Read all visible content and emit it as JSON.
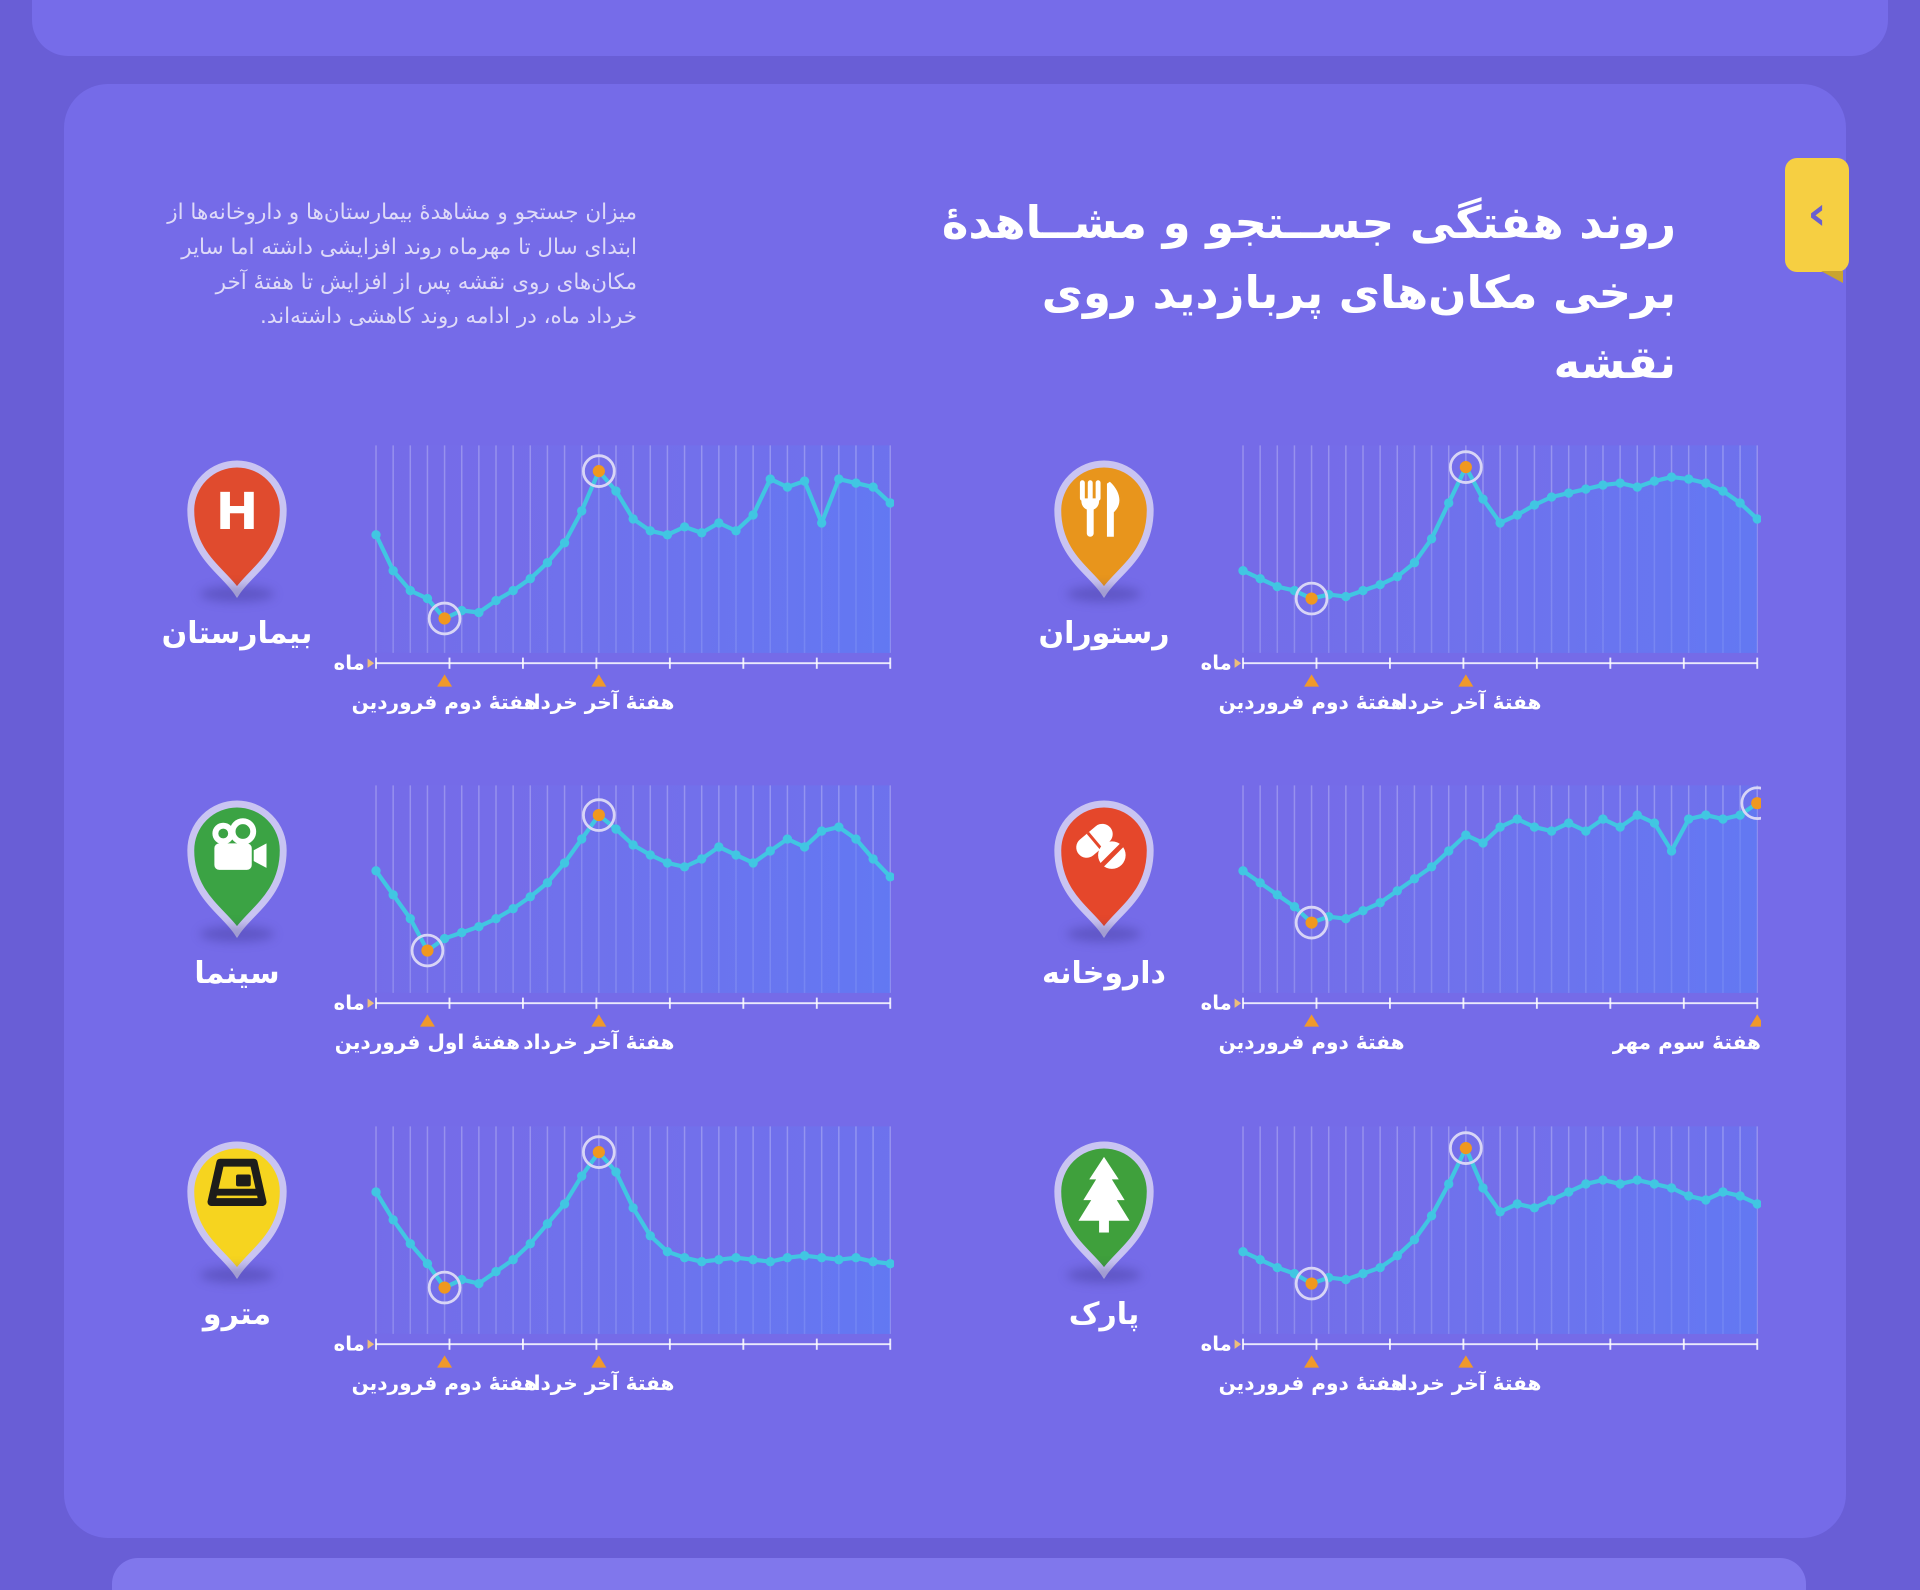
{
  "page": {
    "colors": {
      "background": "#695ED6",
      "card": "#756BE8",
      "line": "#41C6E2",
      "point": "#41C6E2",
      "highlight_dot": "#F0981F",
      "highlight_ring": "#D8D5F6",
      "grid": "rgba(255,255,255,0.25)",
      "axis": "rgba(255,255,255,0.85)",
      "annotation_triangle": "#F0992B",
      "month_arrow": "#EDBE7A",
      "bookmark": "#F6CF42",
      "pin_ring": "#C9C4F2"
    }
  },
  "header": {
    "title_line1": "روند هفتگی جســتجو و مشــاهدهٔ",
    "title_line2": "برخی مکان‌های پربازدید روی نقشه",
    "bookmark_chevron": "‹"
  },
  "intro": {
    "text": "میزان جستجو و مشاهدهٔ بیمارستان‌ها و داروخانه‌ها از ابتدای سال تا مهرماه روند افزایشی داشته اما سایر مکان‌های روی نقشه پس از افزایش تا هفتهٔ آخر خرداد ماه، در ادامه روند کاهشی داشته‌اند."
  },
  "axis": {
    "month_label": "ماه",
    "tick_count": 8
  },
  "chart_data": [
    {
      "type": "area",
      "name": "hospital",
      "label": "بیمارستان",
      "pin_color": "#E04B2E",
      "icon": "hospital-pin-icon",
      "icon_letter": "H",
      "ylim": [
        0,
        100
      ],
      "values": [
        56,
        38,
        28,
        24,
        14,
        18,
        17,
        23,
        28,
        34,
        42,
        52,
        68,
        88,
        78,
        64,
        58,
        56,
        60,
        57,
        62,
        58,
        66,
        84,
        80,
        83,
        62,
        84,
        82,
        80,
        72
      ],
      "highlights": [
        4,
        13
      ],
      "annotations": [
        {
          "index": 4,
          "label": "هفتهٔ دوم فروردین"
        },
        {
          "index": 13,
          "label": "هفتهٔ آخر خرداد"
        }
      ]
    },
    {
      "type": "area",
      "name": "restaurant",
      "label": "رستوران",
      "pin_color": "#E8951C",
      "icon": "restaurant-pin-icon",
      "ylim": [
        0,
        100
      ],
      "values": [
        38,
        34,
        30,
        28,
        24,
        26,
        25,
        28,
        31,
        35,
        42,
        54,
        72,
        90,
        74,
        62,
        66,
        71,
        75,
        77,
        79,
        81,
        82,
        80,
        83,
        85,
        84,
        82,
        78,
        72,
        64
      ],
      "highlights": [
        4,
        13
      ],
      "annotations": [
        {
          "index": 4,
          "label": "هفتهٔ دوم فروردین"
        },
        {
          "index": 13,
          "label": "هفتهٔ آخر خرداد"
        }
      ]
    },
    {
      "type": "area",
      "name": "cinema",
      "label": "سینما",
      "pin_color": "#3BA344",
      "icon": "cinema-pin-icon",
      "ylim": [
        0,
        100
      ],
      "values": [
        58,
        46,
        34,
        18,
        24,
        27,
        30,
        34,
        39,
        45,
        52,
        62,
        74,
        86,
        79,
        71,
        66,
        62,
        60,
        64,
        70,
        66,
        62,
        68,
        74,
        70,
        78,
        80,
        74,
        64,
        55
      ],
      "highlights": [
        3,
        13
      ],
      "annotations": [
        {
          "index": 3,
          "label": "هفتهٔ اول فروردین"
        },
        {
          "index": 13,
          "label": "هفتهٔ آخر خرداد"
        }
      ]
    },
    {
      "type": "area",
      "name": "pharmacy",
      "label": "داروخانه",
      "pin_color": "#E5472B",
      "icon": "pharmacy-pin-icon",
      "ylim": [
        0,
        100
      ],
      "values": [
        58,
        52,
        46,
        40,
        32,
        35,
        34,
        38,
        42,
        48,
        54,
        60,
        68,
        76,
        72,
        80,
        84,
        80,
        78,
        82,
        78,
        84,
        80,
        86,
        82,
        68,
        84,
        86,
        84,
        86,
        92
      ],
      "highlights": [
        4,
        30
      ],
      "annotations": [
        {
          "index": 4,
          "label": "هفتهٔ دوم فروردین"
        },
        {
          "index": 30,
          "label": "هفتهٔ سوم مهر"
        }
      ]
    },
    {
      "type": "area",
      "name": "metro",
      "label": "مترو",
      "pin_color": "#F6D41F",
      "icon": "metro-pin-icon",
      "ylim": [
        0,
        100
      ],
      "values": [
        68,
        54,
        42,
        32,
        20,
        24,
        22,
        28,
        34,
        42,
        52,
        62,
        76,
        88,
        78,
        60,
        46,
        38,
        35,
        33,
        34,
        35,
        34,
        33,
        35,
        36,
        35,
        34,
        35,
        33,
        32
      ],
      "highlights": [
        4,
        13
      ],
      "annotations": [
        {
          "index": 4,
          "label": "هفتهٔ دوم فروردین"
        },
        {
          "index": 13,
          "label": "هفتهٔ آخر خرداد"
        }
      ]
    },
    {
      "type": "area",
      "name": "park",
      "label": "پارک",
      "pin_color": "#3FA03C",
      "icon": "park-pin-icon",
      "ylim": [
        0,
        100
      ],
      "values": [
        38,
        34,
        30,
        27,
        22,
        25,
        24,
        27,
        30,
        36,
        44,
        56,
        72,
        90,
        70,
        58,
        62,
        60,
        64,
        68,
        72,
        74,
        72,
        74,
        72,
        70,
        66,
        64,
        68,
        66,
        62
      ],
      "highlights": [
        4,
        13
      ],
      "annotations": [
        {
          "index": 4,
          "label": "هفتهٔ دوم فروردین"
        },
        {
          "index": 13,
          "label": "هفتهٔ آخر خرداد"
        }
      ]
    }
  ]
}
